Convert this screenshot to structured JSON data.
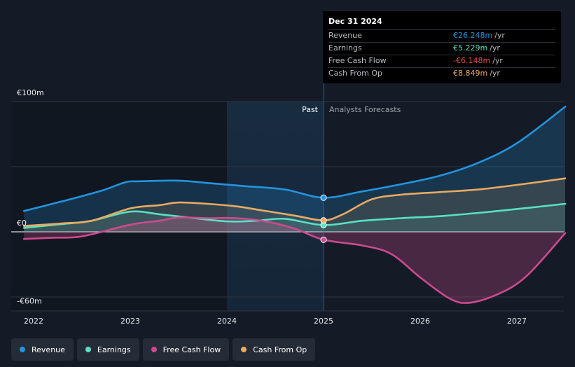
{
  "chart_data": {
    "type": "area",
    "currency": "€",
    "y_unit": "m",
    "ylim": [
      -60,
      100
    ],
    "y_ticks": [
      {
        "value": 100,
        "label": "€100m"
      },
      {
        "value": 0,
        "label": "€0"
      },
      {
        "value": -60,
        "label": "-€60m"
      }
    ],
    "xlim": [
      2021.9,
      2027.5
    ],
    "x_ticks": [
      {
        "value": 2022,
        "label": "2022"
      },
      {
        "value": 2023,
        "label": "2023"
      },
      {
        "value": 2024,
        "label": "2024"
      },
      {
        "value": 2025,
        "label": "2025"
      },
      {
        "value": 2026,
        "label": "2026"
      },
      {
        "value": 2027,
        "label": "2027"
      }
    ],
    "highlight_start": 2024,
    "divider": 2025,
    "past_label": "Past",
    "forecast_label": "Analysts Forecasts",
    "series": [
      {
        "name": "Revenue",
        "color": "#2394df",
        "points": [
          [
            2021.9,
            16
          ],
          [
            2022.3,
            23.5
          ],
          [
            2022.7,
            31.5
          ],
          [
            2022.95,
            38
          ],
          [
            2023.1,
            38.8
          ],
          [
            2023.5,
            39.3
          ],
          [
            2023.8,
            37.5
          ],
          [
            2024.2,
            35
          ],
          [
            2024.6,
            32.5
          ],
          [
            2025,
            26.2
          ],
          [
            2025.4,
            31
          ],
          [
            2025.8,
            36.5
          ],
          [
            2026.2,
            43
          ],
          [
            2026.6,
            53
          ],
          [
            2027,
            68
          ],
          [
            2027.5,
            96
          ]
        ]
      },
      {
        "name": "Earnings",
        "color": "#58e1c2",
        "points": [
          [
            2021.9,
            3
          ],
          [
            2022.3,
            6
          ],
          [
            2022.6,
            8.5
          ],
          [
            2023,
            15.5
          ],
          [
            2023.3,
            13.5
          ],
          [
            2023.6,
            11
          ],
          [
            2024,
            8
          ],
          [
            2024.3,
            8.5
          ],
          [
            2024.6,
            10
          ],
          [
            2025,
            5.2
          ],
          [
            2025.4,
            8.5
          ],
          [
            2025.8,
            10.5
          ],
          [
            2026.2,
            12
          ],
          [
            2026.6,
            14.5
          ],
          [
            2027,
            17.5
          ],
          [
            2027.5,
            21.5
          ]
        ]
      },
      {
        "name": "Free Cash Flow",
        "color": "#cc4a8f",
        "points": [
          [
            2021.9,
            -5.5
          ],
          [
            2022.2,
            -4.5
          ],
          [
            2022.5,
            -3.5
          ],
          [
            2023,
            5.5
          ],
          [
            2023.3,
            8.5
          ],
          [
            2023.5,
            11
          ],
          [
            2023.8,
            10.5
          ],
          [
            2024.1,
            10.5
          ],
          [
            2024.4,
            8
          ],
          [
            2024.7,
            2.5
          ],
          [
            2025,
            -6.1
          ],
          [
            2025.4,
            -10.5
          ],
          [
            2025.7,
            -17
          ],
          [
            2026,
            -35
          ],
          [
            2026.3,
            -51
          ],
          [
            2026.5,
            -54.5
          ],
          [
            2026.8,
            -48
          ],
          [
            2027.1,
            -34
          ],
          [
            2027.5,
            -1
          ]
        ]
      },
      {
        "name": "Cash From Op",
        "color": "#e9aa61",
        "points": [
          [
            2021.9,
            4.5
          ],
          [
            2022.3,
            6.5
          ],
          [
            2022.6,
            8.5
          ],
          [
            2023,
            18
          ],
          [
            2023.3,
            20.5
          ],
          [
            2023.5,
            22.5
          ],
          [
            2023.8,
            21.5
          ],
          [
            2024.1,
            19.5
          ],
          [
            2024.4,
            16
          ],
          [
            2024.7,
            12.5
          ],
          [
            2025,
            8.8
          ],
          [
            2025.2,
            13.5
          ],
          [
            2025.5,
            25
          ],
          [
            2025.8,
            28.5
          ],
          [
            2026.2,
            30.5
          ],
          [
            2026.6,
            32.5
          ],
          [
            2027,
            36
          ],
          [
            2027.5,
            41
          ]
        ]
      }
    ]
  },
  "tooltip": {
    "date": "Dec 31 2024",
    "rows": [
      {
        "metric": "Revenue",
        "value": "€26.248m",
        "unit": "/yr",
        "color": "#2394df"
      },
      {
        "metric": "Earnings",
        "value": "€5.229m",
        "unit": "/yr",
        "color": "#58e1c2"
      },
      {
        "metric": "Free Cash Flow",
        "value": "-€6.148m",
        "unit": "/yr",
        "color": "#e64b4b"
      },
      {
        "metric": "Cash From Op",
        "value": "€8.849m",
        "unit": "/yr",
        "color": "#e9aa61"
      }
    ]
  },
  "legend": [
    {
      "label": "Revenue",
      "color": "#2394df"
    },
    {
      "label": "Earnings",
      "color": "#58e1c2"
    },
    {
      "label": "Free Cash Flow",
      "color": "#cc4a8f"
    },
    {
      "label": "Cash From Op",
      "color": "#e9aa61"
    }
  ]
}
